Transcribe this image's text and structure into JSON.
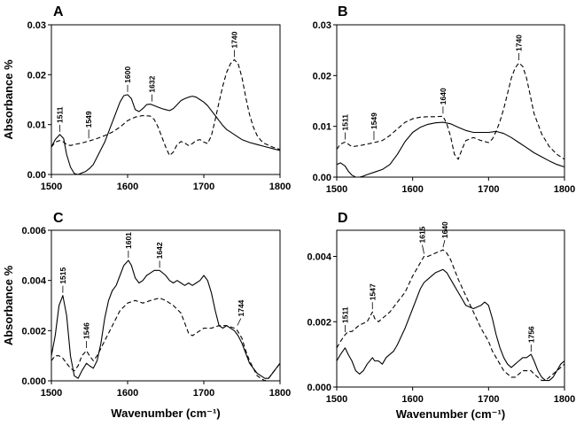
{
  "chart_data": [
    {
      "panel": "A",
      "type": "line",
      "xlim": [
        1500,
        1800
      ],
      "ylim": [
        0,
        0.03
      ],
      "xticks": [
        "1500",
        "1600",
        "1700",
        "1800"
      ],
      "yticks": [
        "0.00",
        "0.01",
        "0.02",
        "0.03"
      ],
      "ylabel": "Absorbance %",
      "xlabel": "",
      "series": [
        {
          "style": "solid",
          "x": [
            1500,
            1505,
            1511,
            1516,
            1520,
            1525,
            1530,
            1535,
            1540,
            1545,
            1550,
            1555,
            1560,
            1565,
            1570,
            1575,
            1580,
            1585,
            1590,
            1595,
            1600,
            1605,
            1610,
            1615,
            1620,
            1625,
            1630,
            1635,
            1640,
            1645,
            1650,
            1655,
            1660,
            1665,
            1670,
            1675,
            1680,
            1685,
            1690,
            1695,
            1700,
            1705,
            1710,
            1715,
            1720,
            1725,
            1730,
            1735,
            1740,
            1745,
            1750,
            1755,
            1760,
            1770,
            1780,
            1790,
            1800
          ],
          "y": [
            0.0055,
            0.007,
            0.008,
            0.0072,
            0.004,
            0.0015,
            0.0002,
            0.0,
            0.0003,
            0.0006,
            0.0012,
            0.002,
            0.0035,
            0.005,
            0.0065,
            0.0085,
            0.0105,
            0.0125,
            0.0145,
            0.0158,
            0.016,
            0.0152,
            0.013,
            0.0126,
            0.0132,
            0.014,
            0.0141,
            0.0138,
            0.0135,
            0.0132,
            0.013,
            0.0128,
            0.0132,
            0.014,
            0.0148,
            0.0152,
            0.0155,
            0.0157,
            0.0155,
            0.015,
            0.0145,
            0.0138,
            0.0128,
            0.0118,
            0.0108,
            0.0098,
            0.009,
            0.0085,
            0.008,
            0.0075,
            0.007,
            0.0067,
            0.0064,
            0.006,
            0.0056,
            0.0052,
            0.0048
          ]
        },
        {
          "style": "dashed",
          "x": [
            1500,
            1505,
            1511,
            1516,
            1520,
            1525,
            1530,
            1540,
            1549,
            1560,
            1570,
            1580,
            1590,
            1600,
            1610,
            1620,
            1630,
            1635,
            1640,
            1645,
            1650,
            1655,
            1660,
            1665,
            1670,
            1675,
            1680,
            1685,
            1690,
            1695,
            1700,
            1705,
            1710,
            1715,
            1720,
            1725,
            1730,
            1735,
            1740,
            1745,
            1750,
            1755,
            1760,
            1765,
            1770,
            1775,
            1780,
            1790,
            1800
          ],
          "y": [
            0.0055,
            0.0065,
            0.0068,
            0.0065,
            0.006,
            0.0058,
            0.006,
            0.0063,
            0.0067,
            0.0072,
            0.0078,
            0.0085,
            0.0095,
            0.0108,
            0.0115,
            0.0118,
            0.0117,
            0.011,
            0.0095,
            0.0075,
            0.0055,
            0.0038,
            0.0045,
            0.006,
            0.0066,
            0.0063,
            0.0058,
            0.0062,
            0.0068,
            0.007,
            0.0065,
            0.0062,
            0.0078,
            0.011,
            0.0145,
            0.0178,
            0.0205,
            0.0222,
            0.023,
            0.0222,
            0.0195,
            0.0155,
            0.012,
            0.0095,
            0.0078,
            0.0068,
            0.0062,
            0.0055,
            0.005
          ]
        }
      ],
      "annotations": [
        {
          "label": "1511",
          "x": 1511,
          "y": 0.008
        },
        {
          "label": "1549",
          "x": 1549,
          "y": 0.0067
        },
        {
          "label": "1600",
          "x": 1600,
          "y": 0.016
        },
        {
          "label": "1632",
          "x": 1632,
          "y": 0.0141
        },
        {
          "label": "1740",
          "x": 1740,
          "y": 0.023
        }
      ]
    },
    {
      "panel": "B",
      "type": "line",
      "xlim": [
        1500,
        1800
      ],
      "ylim": [
        0,
        0.03
      ],
      "xticks": [
        "1500",
        "1600",
        "1700",
        "1800"
      ],
      "yticks": [
        "0.00",
        "0.01",
        "0.02",
        "0.03"
      ],
      "ylabel": "",
      "xlabel": "",
      "series": [
        {
          "style": "solid",
          "x": [
            1500,
            1505,
            1511,
            1515,
            1520,
            1525,
            1530,
            1535,
            1540,
            1550,
            1560,
            1570,
            1580,
            1590,
            1600,
            1610,
            1620,
            1630,
            1640,
            1650,
            1660,
            1670,
            1680,
            1690,
            1700,
            1710,
            1720,
            1730,
            1740,
            1750,
            1760,
            1770,
            1780,
            1790,
            1800
          ],
          "y": [
            0.0025,
            0.0028,
            0.0022,
            0.0012,
            0.0004,
            0.0,
            0.0,
            0.0002,
            0.0005,
            0.001,
            0.0015,
            0.0025,
            0.0045,
            0.007,
            0.0088,
            0.0098,
            0.0104,
            0.0107,
            0.0108,
            0.0105,
            0.0098,
            0.0092,
            0.0088,
            0.0088,
            0.0088,
            0.009,
            0.0086,
            0.0078,
            0.0068,
            0.0058,
            0.0048,
            0.004,
            0.0032,
            0.0025,
            0.002
          ]
        },
        {
          "style": "dashed",
          "x": [
            1500,
            1505,
            1511,
            1515,
            1520,
            1530,
            1540,
            1549,
            1560,
            1570,
            1580,
            1590,
            1600,
            1610,
            1620,
            1630,
            1640,
            1645,
            1650,
            1655,
            1660,
            1665,
            1670,
            1680,
            1690,
            1700,
            1705,
            1710,
            1715,
            1720,
            1725,
            1730,
            1735,
            1740,
            1745,
            1750,
            1755,
            1760,
            1770,
            1780,
            1790,
            1800
          ],
          "y": [
            0.0055,
            0.0065,
            0.0069,
            0.0065,
            0.006,
            0.0062,
            0.0065,
            0.0068,
            0.0072,
            0.0082,
            0.0095,
            0.0108,
            0.0115,
            0.0118,
            0.0119,
            0.0119,
            0.012,
            0.0105,
            0.008,
            0.0045,
            0.0035,
            0.0055,
            0.0072,
            0.0078,
            0.0072,
            0.0068,
            0.0075,
            0.009,
            0.011,
            0.0135,
            0.0165,
            0.0195,
            0.0215,
            0.0225,
            0.0218,
            0.0195,
            0.016,
            0.0125,
            0.0085,
            0.006,
            0.0045,
            0.0035
          ]
        }
      ],
      "annotations": [
        {
          "label": "1511",
          "x": 1511,
          "y": 0.0069
        },
        {
          "label": "1549",
          "x": 1549,
          "y": 0.0068
        },
        {
          "label": "1640",
          "x": 1640,
          "y": 0.012
        },
        {
          "label": "1740",
          "x": 1740,
          "y": 0.0225
        }
      ]
    },
    {
      "panel": "C",
      "type": "line",
      "xlim": [
        1500,
        1800
      ],
      "ylim": [
        0,
        0.006
      ],
      "xticks": [
        "1500",
        "1600",
        "1700",
        "1800"
      ],
      "yticks": [
        "0.000",
        "0.002",
        "0.004",
        "0.006"
      ],
      "ylabel": "Absorbance %",
      "xlabel": "Wavenumber (cm⁻¹)",
      "series": [
        {
          "style": "solid",
          "x": [
            1500,
            1505,
            1510,
            1515,
            1520,
            1525,
            1530,
            1535,
            1540,
            1546,
            1550,
            1555,
            1560,
            1565,
            1570,
            1575,
            1580,
            1585,
            1590,
            1595,
            1601,
            1605,
            1610,
            1615,
            1620,
            1625,
            1630,
            1635,
            1642,
            1650,
            1655,
            1660,
            1665,
            1670,
            1675,
            1680,
            1685,
            1690,
            1695,
            1700,
            1705,
            1710,
            1715,
            1720,
            1725,
            1730,
            1735,
            1740,
            1745,
            1750,
            1755,
            1760,
            1770,
            1775,
            1780,
            1785,
            1790,
            1795,
            1800
          ],
          "y": [
            0.001,
            0.0018,
            0.003,
            0.0034,
            0.0026,
            0.001,
            0.0002,
            0.0001,
            0.0004,
            0.0007,
            0.0006,
            0.0005,
            0.0008,
            0.0015,
            0.0025,
            0.0032,
            0.0036,
            0.0038,
            0.0042,
            0.0046,
            0.0048,
            0.0046,
            0.0041,
            0.0039,
            0.004,
            0.0042,
            0.0043,
            0.0044,
            0.0044,
            0.0042,
            0.004,
            0.0039,
            0.004,
            0.0039,
            0.0038,
            0.0039,
            0.0038,
            0.0039,
            0.004,
            0.0042,
            0.004,
            0.0035,
            0.0028,
            0.0022,
            0.0021,
            0.0022,
            0.0021,
            0.002,
            0.0018,
            0.0015,
            0.0011,
            0.0007,
            0.0003,
            0.0002,
            0.0001,
            0.0001,
            0.0003,
            0.0005,
            0.0007
          ]
        },
        {
          "style": "dashed",
          "x": [
            1500,
            1505,
            1510,
            1515,
            1520,
            1525,
            1530,
            1535,
            1540,
            1546,
            1550,
            1555,
            1560,
            1570,
            1580,
            1590,
            1600,
            1610,
            1620,
            1630,
            1642,
            1650,
            1660,
            1670,
            1675,
            1680,
            1685,
            1690,
            1700,
            1710,
            1720,
            1730,
            1740,
            1744,
            1750,
            1755,
            1760,
            1765,
            1770,
            1775,
            1780,
            1785,
            1790,
            1795,
            1800
          ],
          "y": [
            0.0008,
            0.001,
            0.001,
            0.0009,
            0.0007,
            0.0005,
            0.0004,
            0.0006,
            0.001,
            0.0012,
            0.001,
            0.0008,
            0.001,
            0.0016,
            0.0022,
            0.0028,
            0.0031,
            0.0032,
            0.0031,
            0.0032,
            0.0033,
            0.0032,
            0.003,
            0.0027,
            0.0023,
            0.0019,
            0.0018,
            0.0019,
            0.0021,
            0.0021,
            0.0022,
            0.0022,
            0.0021,
            0.002,
            0.0017,
            0.0012,
            0.0008,
            0.0005,
            0.0002,
            0.0001,
            0.0,
            0.0001,
            0.0003,
            0.0005,
            0.0007
          ]
        }
      ],
      "annotations": [
        {
          "label": "1515",
          "x": 1515,
          "y": 0.0034
        },
        {
          "label": "1546",
          "x": 1546,
          "y": 0.0012
        },
        {
          "label": "1601",
          "x": 1601,
          "y": 0.0048
        },
        {
          "label": "1642",
          "x": 1642,
          "y": 0.0044
        },
        {
          "label": "1744",
          "x": 1744,
          "y": 0.0021
        }
      ]
    },
    {
      "panel": "D",
      "type": "line",
      "xlim": [
        1500,
        1800
      ],
      "ylim": [
        0,
        0.0048
      ],
      "xticks": [
        "1500",
        "1600",
        "1700",
        "1800"
      ],
      "yticks": [
        "0.000",
        "0.002",
        "0.004"
      ],
      "ylabel": "",
      "xlabel": "Wavenumber (cm⁻¹)",
      "series": [
        {
          "style": "solid",
          "x": [
            1500,
            1505,
            1511,
            1515,
            1520,
            1525,
            1530,
            1535,
            1540,
            1547,
            1550,
            1555,
            1560,
            1565,
            1570,
            1575,
            1580,
            1590,
            1600,
            1610,
            1615,
            1620,
            1625,
            1630,
            1640,
            1645,
            1650,
            1655,
            1660,
            1665,
            1670,
            1680,
            1690,
            1695,
            1700,
            1705,
            1710,
            1715,
            1720,
            1725,
            1730,
            1735,
            1740,
            1745,
            1750,
            1756,
            1760,
            1765,
            1770,
            1775,
            1780,
            1785,
            1790,
            1795,
            1800
          ],
          "y": [
            0.0008,
            0.001,
            0.0012,
            0.001,
            0.0008,
            0.0005,
            0.0004,
            0.0005,
            0.0007,
            0.0009,
            0.0008,
            0.0008,
            0.0007,
            0.0009,
            0.001,
            0.0011,
            0.0013,
            0.0018,
            0.0024,
            0.003,
            0.0032,
            0.0033,
            0.0034,
            0.0035,
            0.0036,
            0.0035,
            0.0033,
            0.0031,
            0.0029,
            0.0027,
            0.0025,
            0.0024,
            0.0025,
            0.0026,
            0.0025,
            0.0021,
            0.0016,
            0.0012,
            0.0009,
            0.0007,
            0.0006,
            0.0007,
            0.0008,
            0.0009,
            0.0009,
            0.001,
            0.0008,
            0.0005,
            0.0003,
            0.0002,
            0.0002,
            0.0003,
            0.0005,
            0.0007,
            0.0008
          ]
        },
        {
          "style": "dashed",
          "x": [
            1500,
            1505,
            1511,
            1515,
            1520,
            1530,
            1540,
            1547,
            1550,
            1555,
            1560,
            1570,
            1580,
            1590,
            1600,
            1610,
            1615,
            1620,
            1630,
            1640,
            1645,
            1650,
            1655,
            1660,
            1670,
            1680,
            1690,
            1700,
            1705,
            1710,
            1715,
            1720,
            1725,
            1730,
            1735,
            1740,
            1745,
            1750,
            1756,
            1760,
            1765,
            1770,
            1775,
            1780,
            1785,
            1790,
            1795,
            1800
          ],
          "y": [
            0.0012,
            0.0014,
            0.0016,
            0.0017,
            0.0017,
            0.0019,
            0.002,
            0.0023,
            0.0021,
            0.002,
            0.0021,
            0.0023,
            0.0026,
            0.0029,
            0.0034,
            0.0038,
            0.004,
            0.004,
            0.0041,
            0.0042,
            0.0041,
            0.0039,
            0.0036,
            0.0033,
            0.0028,
            0.0023,
            0.0018,
            0.0014,
            0.0011,
            0.0009,
            0.0007,
            0.0005,
            0.0004,
            0.0003,
            0.0003,
            0.0004,
            0.0005,
            0.0005,
            0.0005,
            0.0004,
            0.0003,
            0.0002,
            0.0002,
            0.0003,
            0.0004,
            0.0005,
            0.0006,
            0.0007
          ]
        }
      ],
      "annotations": [
        {
          "label": "1511",
          "x": 1511,
          "y": 0.0016
        },
        {
          "label": "1547",
          "x": 1547,
          "y": 0.0023
        },
        {
          "label": "1615",
          "x": 1615,
          "y": 0.004
        },
        {
          "label": "1640",
          "x": 1640,
          "y": 0.0042
        },
        {
          "label": "1756",
          "x": 1756,
          "y": 0.001
        }
      ]
    }
  ]
}
